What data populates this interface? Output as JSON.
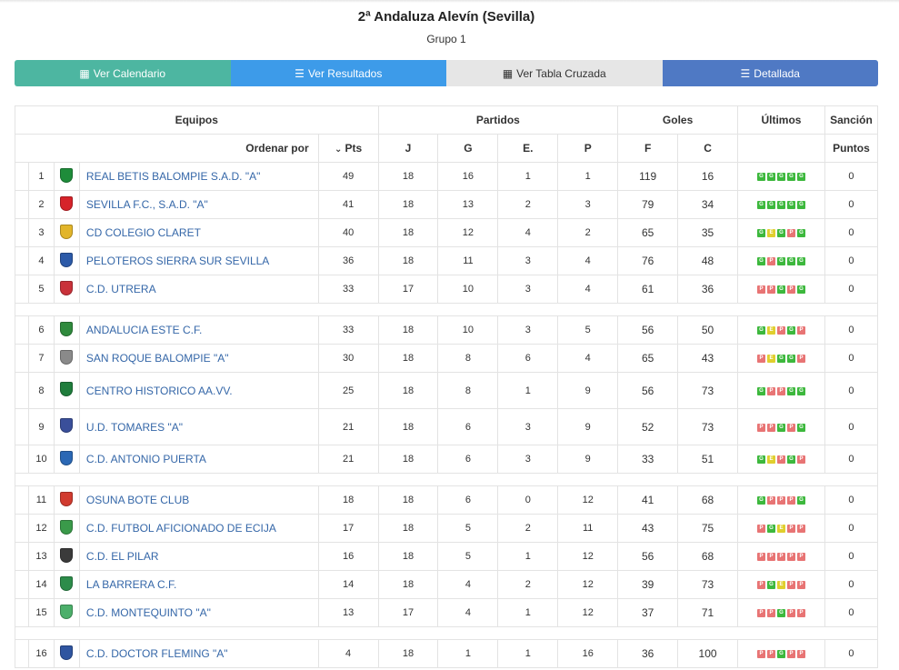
{
  "title": "2ª Andaluza Alevín (Sevilla)",
  "subtitle": "Grupo 1",
  "buttons": {
    "calendar": "Ver Calendario",
    "results": "Ver Resultados",
    "cross_table": "Ver Tabla Cruzada",
    "detailed": "Detallada"
  },
  "colors": {
    "calendar": "#4db6a1",
    "results": "#3d9be9",
    "cross_table": "#e6e6e6",
    "detailed": "#4f79c4",
    "win": "#3db83d",
    "draw": "#e0cf2e",
    "loss": "#e87474",
    "team_link": "#3567a8"
  },
  "header": {
    "equipos": "Equipos",
    "partidos": "Partidos",
    "goles": "Goles",
    "ultimos": "Últimos",
    "sancion": "Sanción",
    "ordenar_por": "Ordenar por",
    "pts": "Pts",
    "j": "J",
    "g": "G",
    "e": "E.",
    "p": "P",
    "f": "F",
    "c": "C",
    "puntos": "Puntos"
  },
  "teams": [
    {
      "pos": "1",
      "name": "REAL BETIS BALOMPIE S.A.D. \"A\"",
      "pts": "49",
      "j": "18",
      "g": "16",
      "e": "1",
      "p": "1",
      "f": "119",
      "c": "16",
      "last": [
        "G",
        "G",
        "G",
        "G",
        "G"
      ],
      "sancion": "0",
      "color": "#1e8c3a"
    },
    {
      "pos": "2",
      "name": "SEVILLA F.C., S.A.D. \"A\"",
      "pts": "41",
      "j": "18",
      "g": "13",
      "e": "2",
      "p": "3",
      "f": "79",
      "c": "34",
      "last": [
        "G",
        "G",
        "G",
        "G",
        "G"
      ],
      "sancion": "0",
      "color": "#d6232a"
    },
    {
      "pos": "3",
      "name": "CD COLEGIO CLARET",
      "pts": "40",
      "j": "18",
      "g": "12",
      "e": "4",
      "p": "2",
      "f": "65",
      "c": "35",
      "last": [
        "G",
        "E",
        "G",
        "P",
        "G"
      ],
      "sancion": "0",
      "color": "#e2b52a"
    },
    {
      "pos": "4",
      "name": "PELOTEROS SIERRA SUR SEVILLA",
      "pts": "36",
      "j": "18",
      "g": "11",
      "e": "3",
      "p": "4",
      "f": "76",
      "c": "48",
      "last": [
        "G",
        "P",
        "G",
        "G",
        "G"
      ],
      "sancion": "0",
      "color": "#2c5aa8"
    },
    {
      "pos": "5",
      "name": "C.D. UTRERA",
      "pts": "33",
      "j": "17",
      "g": "10",
      "e": "3",
      "p": "4",
      "f": "61",
      "c": "36",
      "last": [
        "P",
        "P",
        "G",
        "P",
        "G"
      ],
      "sancion": "0",
      "color": "#c9323a"
    },
    {
      "pos": "6",
      "name": "ANDALUCIA ESTE C.F.",
      "pts": "33",
      "j": "18",
      "g": "10",
      "e": "3",
      "p": "5",
      "f": "56",
      "c": "50",
      "last": [
        "G",
        "E",
        "P",
        "G",
        "P"
      ],
      "sancion": "0",
      "color": "#2f8a3d"
    },
    {
      "pos": "7",
      "name": "SAN ROQUE BALOMPIE \"A\"",
      "pts": "30",
      "j": "18",
      "g": "8",
      "e": "6",
      "p": "4",
      "f": "65",
      "c": "43",
      "last": [
        "P",
        "E",
        "G",
        "G",
        "P"
      ],
      "sancion": "0",
      "color": "#8a8a8a"
    },
    {
      "pos": "8",
      "name": "CENTRO HISTORICO AA.VV.",
      "pts": "25",
      "j": "18",
      "g": "8",
      "e": "1",
      "p": "9",
      "f": "56",
      "c": "73",
      "last": [
        "G",
        "P",
        "P",
        "G",
        "G"
      ],
      "sancion": "0",
      "color": "#1f7d3c"
    },
    {
      "pos": "9",
      "name": "U.D. TOMARES \"A\"",
      "pts": "21",
      "j": "18",
      "g": "6",
      "e": "3",
      "p": "9",
      "f": "52",
      "c": "73",
      "last": [
        "P",
        "P",
        "G",
        "P",
        "G"
      ],
      "sancion": "0",
      "color": "#3a4f9a"
    },
    {
      "pos": "10",
      "name": "C.D. ANTONIO PUERTA",
      "pts": "21",
      "j": "18",
      "g": "6",
      "e": "3",
      "p": "9",
      "f": "33",
      "c": "51",
      "last": [
        "G",
        "E",
        "P",
        "G",
        "P"
      ],
      "sancion": "0",
      "color": "#2b68b5"
    },
    {
      "pos": "11",
      "name": "OSUNA BOTE CLUB",
      "pts": "18",
      "j": "18",
      "g": "6",
      "e": "0",
      "p": "12",
      "f": "41",
      "c": "68",
      "last": [
        "G",
        "P",
        "P",
        "P",
        "G"
      ],
      "sancion": "0",
      "color": "#d13b2f"
    },
    {
      "pos": "12",
      "name": "C.D. FUTBOL AFICIONADO DE ECIJA",
      "pts": "17",
      "j": "18",
      "g": "5",
      "e": "2",
      "p": "11",
      "f": "43",
      "c": "75",
      "last": [
        "P",
        "G",
        "E",
        "P",
        "P"
      ],
      "sancion": "0",
      "color": "#3a9a4a"
    },
    {
      "pos": "13",
      "name": "C.D. EL PILAR",
      "pts": "16",
      "j": "18",
      "g": "5",
      "e": "1",
      "p": "12",
      "f": "56",
      "c": "68",
      "last": [
        "P",
        "P",
        "P",
        "P",
        "P"
      ],
      "sancion": "0",
      "color": "#3b3b3b"
    },
    {
      "pos": "14",
      "name": "LA BARRERA C.F.",
      "pts": "14",
      "j": "18",
      "g": "4",
      "e": "2",
      "p": "12",
      "f": "39",
      "c": "73",
      "last": [
        "P",
        "G",
        "E",
        "P",
        "P"
      ],
      "sancion": "0",
      "color": "#2d8c4a"
    },
    {
      "pos": "15",
      "name": "C.D. MONTEQUINTO \"A\"",
      "pts": "13",
      "j": "17",
      "g": "4",
      "e": "1",
      "p": "12",
      "f": "37",
      "c": "71",
      "last": [
        "P",
        "P",
        "G",
        "P",
        "P"
      ],
      "sancion": "0",
      "color": "#4caf6a"
    },
    {
      "pos": "16",
      "name": "C.D. DOCTOR FLEMING \"A\"",
      "pts": "4",
      "j": "18",
      "g": "1",
      "e": "1",
      "p": "16",
      "f": "36",
      "c": "100",
      "last": [
        "P",
        "P",
        "G",
        "P",
        "P"
      ],
      "sancion": "0",
      "color": "#2f55a0"
    }
  ]
}
